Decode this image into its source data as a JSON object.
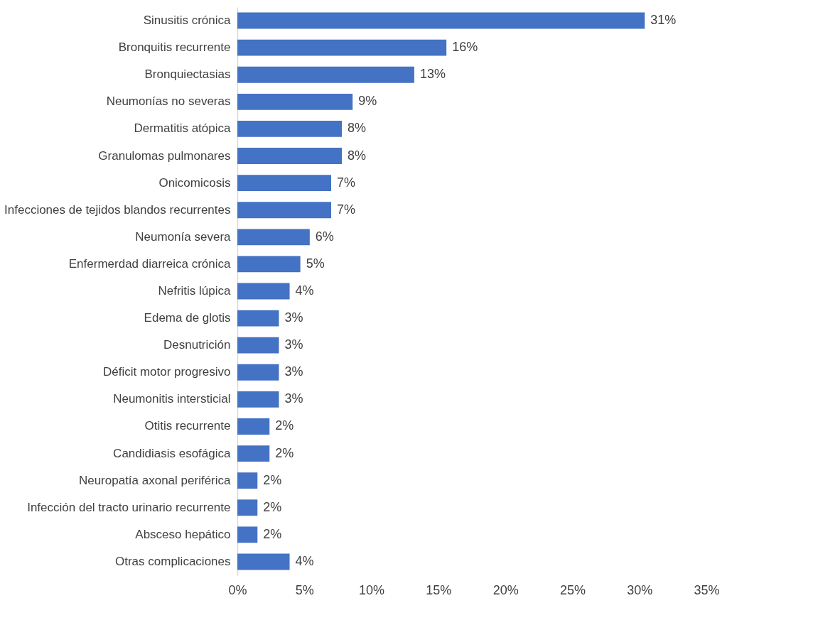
{
  "chart_data": {
    "type": "bar",
    "orientation": "horizontal",
    "categories": [
      "Sinusitis crónica",
      "Bronquitis recurrente",
      "Bronquiectasias",
      "Neumonías no severas",
      "Dermatitis atópica",
      "Granulomas pulmonares",
      "Onicomicosis",
      "Infecciones de tejidos blandos recurrentes",
      "Neumonía severa",
      "Enfermerdad diarreica crónica",
      "Nefritis lúpica",
      "Edema de glotis",
      "Desnutrición",
      "Déficit motor progresivo",
      "Neumonitis intersticial",
      "Otitis recurrente",
      "Candidiasis esofágica",
      "Neuropatía axonal periférica",
      "Infección del tracto urinario recurrente",
      "Absceso hepático",
      "Otras complicaciones"
    ],
    "series": [
      {
        "color": "#4472c4",
        "values": [
          30.4,
          15.6,
          13.2,
          8.6,
          7.8,
          7.8,
          7.0,
          7.0,
          5.4,
          4.7,
          3.9,
          3.1,
          3.1,
          3.1,
          3.1,
          2.4,
          2.4,
          1.5,
          1.5,
          1.5,
          3.9
        ]
      }
    ],
    "value_labels": [
      "31%",
      "16%",
      "13%",
      "9%",
      "8%",
      "8%",
      "7%",
      "7%",
      "6%",
      "5%",
      "4%",
      "3%",
      "3%",
      "3%",
      "3%",
      "2%",
      "2%",
      "2%",
      "2%",
      "2%",
      "4%"
    ],
    "xlim": [
      0,
      35
    ],
    "xticks": [
      {
        "value": 0,
        "label": "0%"
      },
      {
        "value": 5,
        "label": "5%"
      },
      {
        "value": 10,
        "label": "10%"
      },
      {
        "value": 15,
        "label": "15%"
      },
      {
        "value": 20,
        "label": "20%"
      },
      {
        "value": 25,
        "label": "25%"
      },
      {
        "value": 30,
        "label": "30%"
      },
      {
        "value": 35,
        "label": "35%"
      }
    ],
    "grid": false
  }
}
